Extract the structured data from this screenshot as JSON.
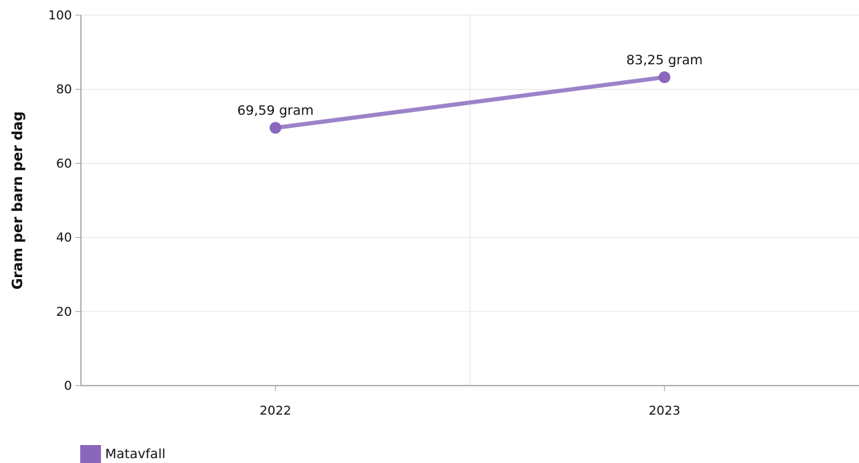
{
  "chart_data": {
    "type": "line",
    "x": [
      "2022",
      "2023"
    ],
    "series": [
      {
        "name": "Matavfall",
        "values": [
          69.59,
          83.25
        ],
        "labels": [
          "69,59 gram",
          "83,25 gram"
        ]
      }
    ],
    "title": "",
    "xlabel": "",
    "ylabel": "Gram per barn per dag",
    "ylim": [
      0,
      100
    ],
    "yticks": [
      0,
      20,
      40,
      60,
      80,
      100
    ],
    "ytick_labels": [
      "0",
      "20",
      "40",
      "60",
      "80",
      "100"
    ],
    "grid": true,
    "legend_position": "bottom-left"
  },
  "colors": {
    "line": "#9b82c9",
    "marker": "#8b66bd",
    "legend_swatch": "#8b66bd",
    "grid": "#e3e3e3",
    "axis": "#999999"
  },
  "legend": {
    "label": "Matavfall"
  }
}
